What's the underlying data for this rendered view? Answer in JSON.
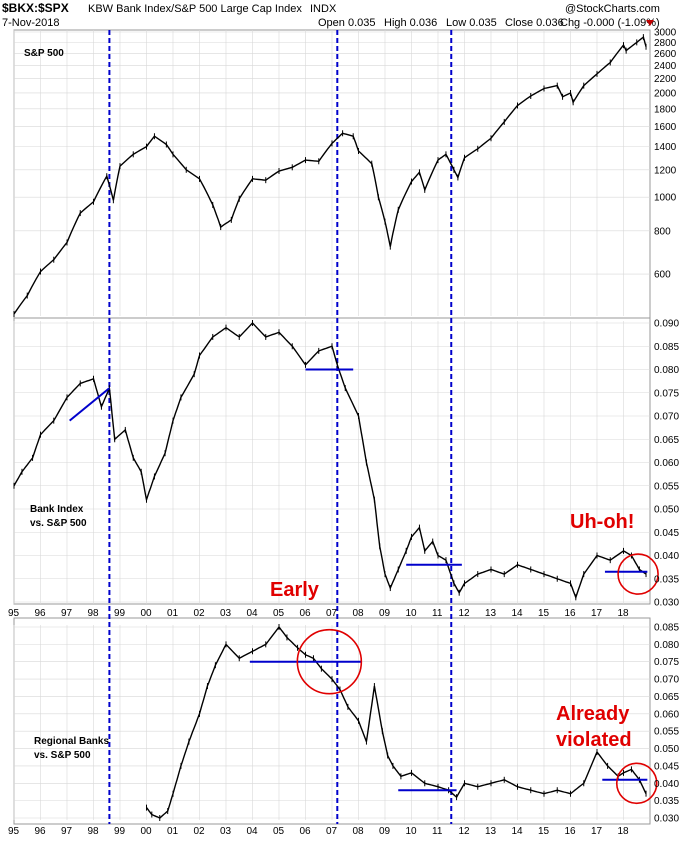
{
  "header": {
    "symbol": "$BKX:$SPX",
    "description": "KBW Bank Index/S&P 500 Large Cap Index",
    "exchange": "INDX",
    "date": "7-Nov-2018",
    "open": "Open 0.035",
    "high": "High 0.036",
    "low": "Low 0.035",
    "close": "Close 0.036",
    "chg": "Chg -0.000 (-1.09%)",
    "brand": "@StockCharts.com"
  },
  "colors": {
    "price": "#000000",
    "marker": "#0000cc",
    "annotation": "#e00000",
    "grid": "#d8d8d8"
  },
  "chart_data": [
    {
      "type": "line",
      "title": "S&P 500",
      "scale": "log",
      "ylim": [
        460,
        3000
      ],
      "yticks": [
        "3000",
        "2800",
        "2600",
        "2400",
        "2200",
        "2000",
        "1800",
        "1600",
        "1400",
        "1200",
        "1000",
        "800",
        "600"
      ],
      "x": [
        1995.0,
        1995.5,
        1996.0,
        1996.5,
        1997.0,
        1997.5,
        1998.0,
        1998.5,
        1998.75,
        1999.0,
        1999.5,
        2000.0,
        2000.3,
        2000.75,
        2001.0,
        2001.5,
        2002.0,
        2002.5,
        2002.8,
        2003.2,
        2003.5,
        2004.0,
        2004.5,
        2005.0,
        2005.5,
        2006.0,
        2006.5,
        2007.0,
        2007.4,
        2007.8,
        2008.0,
        2008.5,
        2008.75,
        2009.0,
        2009.2,
        2009.5,
        2010.0,
        2010.3,
        2010.5,
        2011.0,
        2011.3,
        2011.6,
        2011.75,
        2012.0,
        2012.5,
        2013.0,
        2013.5,
        2014.0,
        2014.5,
        2015.0,
        2015.5,
        2015.7,
        2016.0,
        2016.1,
        2016.5,
        2017.0,
        2017.5,
        2018.0,
        2018.1,
        2018.5,
        2018.75,
        2018.85
      ],
      "series": [
        {
          "values": [
            460,
            520,
            610,
            660,
            740,
            900,
            970,
            1150,
            980,
            1230,
            1330,
            1400,
            1500,
            1420,
            1330,
            1200,
            1130,
            950,
            820,
            860,
            990,
            1130,
            1120,
            1190,
            1220,
            1280,
            1270,
            1430,
            1530,
            1500,
            1360,
            1250,
            1000,
            850,
            720,
            920,
            1110,
            1180,
            1050,
            1280,
            1330,
            1200,
            1140,
            1300,
            1380,
            1480,
            1650,
            1840,
            1960,
            2060,
            2100,
            1950,
            2000,
            1880,
            2100,
            2270,
            2450,
            2750,
            2650,
            2800,
            2900,
            2720
          ]
        }
      ]
    },
    {
      "type": "line",
      "title": "Bank Index vs. S&P 500",
      "ylim": [
        0.03,
        0.09
      ],
      "yticks": [
        "0.090",
        "0.085",
        "0.080",
        "0.075",
        "0.070",
        "0.065",
        "0.060",
        "0.055",
        "0.050",
        "0.045",
        "0.040",
        "0.035",
        "0.030"
      ],
      "x": [
        1995.0,
        1995.3,
        1995.7,
        1996.0,
        1996.5,
        1997.0,
        1997.5,
        1998.0,
        1998.3,
        1998.6,
        1998.8,
        1999.2,
        1999.5,
        1999.8,
        2000.0,
        2000.3,
        2000.7,
        2001.0,
        2001.3,
        2001.8,
        2002.0,
        2002.5,
        2003.0,
        2003.5,
        2004.0,
        2004.5,
        2005.0,
        2005.5,
        2006.0,
        2006.5,
        2007.0,
        2007.2,
        2007.5,
        2008.0,
        2008.3,
        2008.6,
        2008.8,
        2009.0,
        2009.2,
        2009.5,
        2009.8,
        2010.0,
        2010.3,
        2010.5,
        2010.8,
        2011.0,
        2011.3,
        2011.6,
        2011.8,
        2012.0,
        2012.5,
        2013.0,
        2013.5,
        2014.0,
        2014.5,
        2015.0,
        2015.5,
        2016.0,
        2016.2,
        2016.5,
        2017.0,
        2017.5,
        2018.0,
        2018.3,
        2018.6,
        2018.85
      ],
      "series": [
        {
          "values": [
            0.055,
            0.058,
            0.061,
            0.066,
            0.069,
            0.074,
            0.077,
            0.078,
            0.072,
            0.076,
            0.065,
            0.067,
            0.061,
            0.058,
            0.052,
            0.057,
            0.062,
            0.069,
            0.074,
            0.079,
            0.083,
            0.087,
            0.089,
            0.087,
            0.09,
            0.087,
            0.088,
            0.085,
            0.081,
            0.084,
            0.085,
            0.081,
            0.076,
            0.07,
            0.06,
            0.052,
            0.042,
            0.036,
            0.033,
            0.037,
            0.041,
            0.044,
            0.046,
            0.041,
            0.043,
            0.04,
            0.039,
            0.034,
            0.032,
            0.034,
            0.036,
            0.037,
            0.036,
            0.038,
            0.037,
            0.036,
            0.035,
            0.034,
            0.031,
            0.036,
            0.04,
            0.039,
            0.041,
            0.04,
            0.037,
            0.036
          ]
        }
      ]
    },
    {
      "type": "line",
      "title": "Regional Banks vs. S&P 500",
      "ylim": [
        0.03,
        0.085
      ],
      "yticks": [
        "0.085",
        "0.080",
        "0.075",
        "0.070",
        "0.065",
        "0.060",
        "0.055",
        "0.050",
        "0.045",
        "0.040",
        "0.035",
        "0.030"
      ],
      "x": [
        2000.0,
        2000.2,
        2000.5,
        2000.8,
        2001.0,
        2001.3,
        2001.6,
        2002.0,
        2002.3,
        2002.6,
        2003.0,
        2003.5,
        2004.0,
        2004.5,
        2005.0,
        2005.3,
        2005.7,
        2006.0,
        2006.3,
        2006.6,
        2007.0,
        2007.3,
        2007.6,
        2008.0,
        2008.3,
        2008.6,
        2008.9,
        2009.1,
        2009.3,
        2009.6,
        2010.0,
        2010.5,
        2011.0,
        2011.4,
        2011.7,
        2012.0,
        2012.5,
        2013.0,
        2013.5,
        2014.0,
        2014.5,
        2015.0,
        2015.5,
        2016.0,
        2016.5,
        2017.0,
        2017.4,
        2017.8,
        2018.0,
        2018.3,
        2018.6,
        2018.85
      ],
      "series": [
        {
          "values": [
            0.033,
            0.031,
            0.03,
            0.032,
            0.037,
            0.045,
            0.052,
            0.06,
            0.068,
            0.074,
            0.08,
            0.076,
            0.078,
            0.08,
            0.085,
            0.082,
            0.079,
            0.077,
            0.076,
            0.073,
            0.07,
            0.067,
            0.062,
            0.058,
            0.052,
            0.068,
            0.055,
            0.048,
            0.045,
            0.042,
            0.043,
            0.04,
            0.039,
            0.038,
            0.036,
            0.04,
            0.039,
            0.04,
            0.041,
            0.039,
            0.038,
            0.037,
            0.038,
            0.037,
            0.04,
            0.049,
            0.045,
            0.042,
            0.043,
            0.044,
            0.041,
            0.037
          ]
        }
      ]
    }
  ],
  "xaxis": {
    "labels": [
      "95",
      "96",
      "97",
      "98",
      "99",
      "00",
      "01",
      "02",
      "03",
      "04",
      "05",
      "06",
      "07",
      "08",
      "09",
      "10",
      "11",
      "12",
      "13",
      "14",
      "15",
      "16",
      "17",
      "18"
    ]
  },
  "panels": {
    "spx_label": "S&P 500",
    "bank_label_1": "Bank Index",
    "bank_label_2": "vs. S&P 500",
    "regional_label_1": "Regional Banks",
    "regional_label_2": "vs. S&P 500"
  },
  "annotations": {
    "uhoh": "Uh-oh!",
    "early": "Early",
    "already_1": "Already",
    "already_2": "violated"
  },
  "markers": {
    "vertical_lines_at_year": [
      1998.6,
      2007.2,
      2011.5
    ],
    "bank_trendline": {
      "from": [
        1997.1,
        0.069
      ],
      "to": [
        1998.6,
        0.076
      ]
    },
    "bank_support_lines": [
      {
        "from": 2006.0,
        "to": 2007.8,
        "level": 0.08
      },
      {
        "from": 2009.8,
        "to": 2011.9,
        "level": 0.038
      },
      {
        "from": 2017.3,
        "to": 2018.9,
        "level": 0.0365
      }
    ],
    "regional_support_lines": [
      {
        "from": 2003.9,
        "to": 2008.1,
        "level": 0.075
      },
      {
        "from": 2009.5,
        "to": 2011.7,
        "level": 0.038
      },
      {
        "from": 2017.2,
        "to": 2018.9,
        "level": 0.041
      }
    ],
    "circles": [
      {
        "panel": "bank",
        "year": 2018.55,
        "level": 0.036
      },
      {
        "panel": "regional",
        "year": 2006.9,
        "level": 0.075
      },
      {
        "panel": "regional",
        "year": 2018.5,
        "level": 0.04
      }
    ]
  }
}
